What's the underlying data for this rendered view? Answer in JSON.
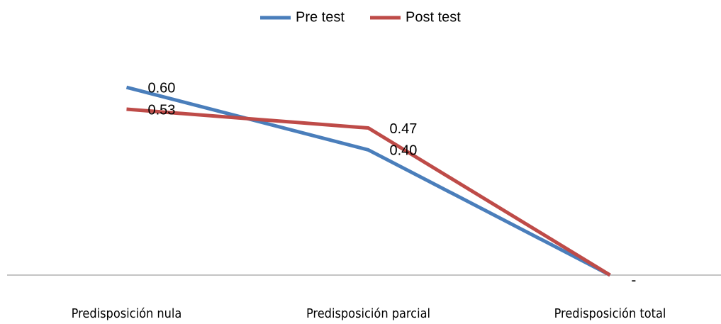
{
  "chart_data": {
    "type": "line",
    "categories": [
      "Predisposición nula",
      "Predisposición parcial",
      "Predisposición total"
    ],
    "series": [
      {
        "name": "Pre test",
        "color": "#4a7ebb",
        "values": [
          0.6,
          0.4,
          0
        ],
        "value_labels": [
          "0.60",
          "0.40",
          "-"
        ]
      },
      {
        "name": "Post test",
        "color": "#be4b48",
        "values": [
          0.53,
          0.47,
          0
        ],
        "value_labels": [
          "0.53",
          "0.47",
          "-"
        ]
      }
    ],
    "ylim": [
      0,
      0.7
    ],
    "legend": "top"
  }
}
